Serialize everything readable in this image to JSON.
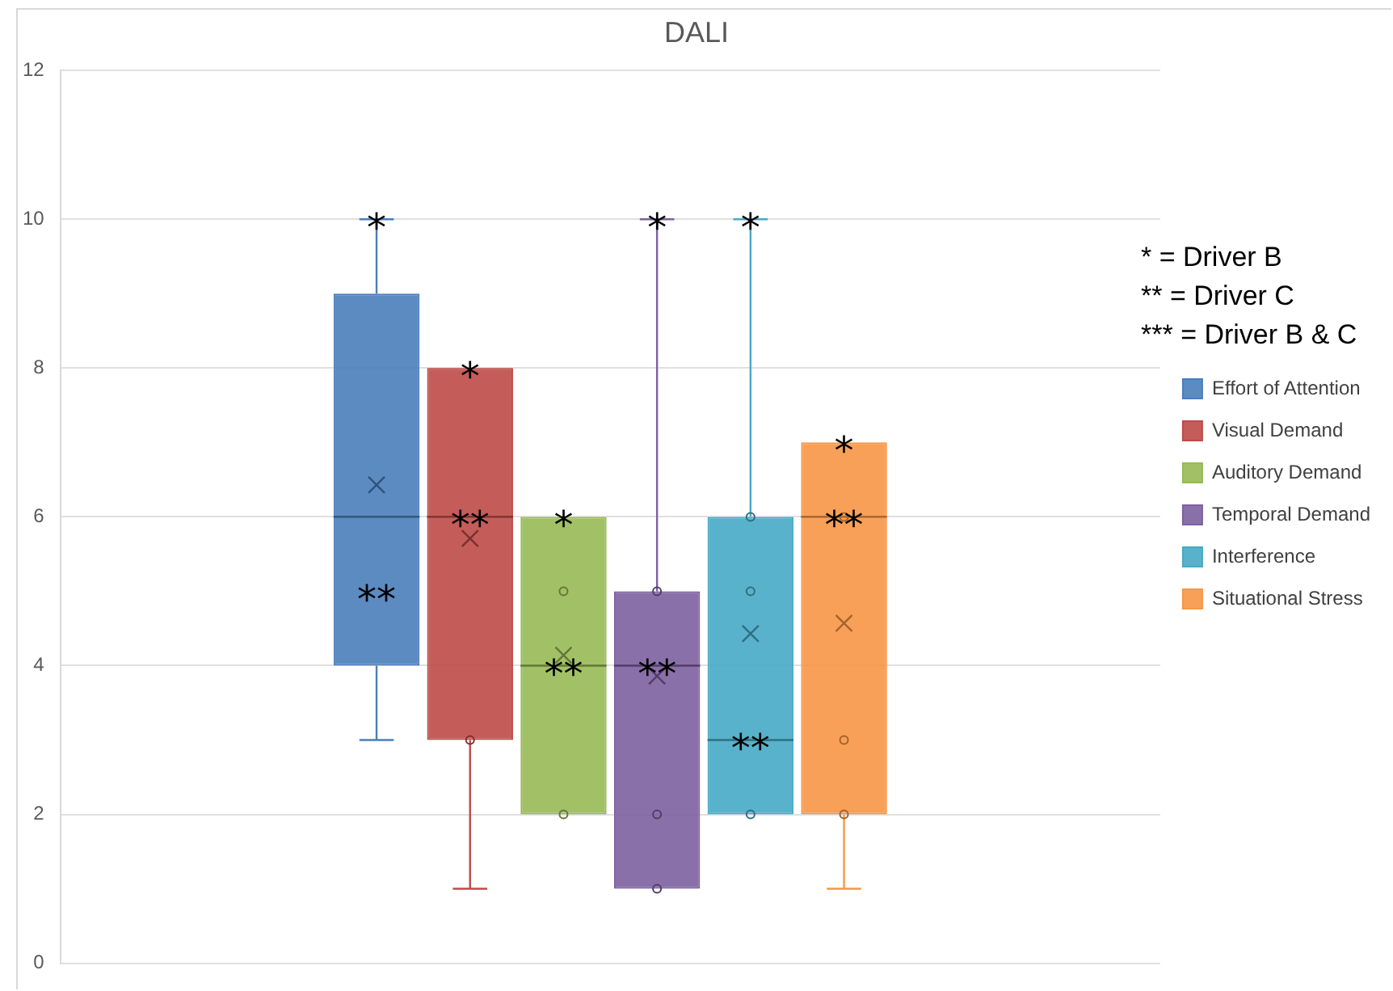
{
  "chart_data": {
    "type": "box",
    "title": "DALI",
    "categories": [
      null
    ],
    "series": [
      {
        "name": "Effort of Attention",
        "color": "#4a7ebb",
        "boxes": [
          {
            "low": 3,
            "q1": 4,
            "median": 6,
            "q3": 9,
            "high": 10,
            "mean": 6.43
          }
        ]
      },
      {
        "name": "Visual Demand",
        "color": "#be4b48",
        "boxes": [
          {
            "low": 1,
            "q1": 3,
            "median": 6,
            "q3": 8,
            "high": 8,
            "mean": 5.71,
            "outliers": [
              3
            ]
          }
        ]
      },
      {
        "name": "Auditory Demand",
        "color": "#98b954",
        "boxes": [
          {
            "low": 2,
            "q1": 2,
            "median": 4,
            "q3": 6,
            "high": 6,
            "mean": 4.14,
            "outliers": [
              5,
              2
            ]
          }
        ]
      },
      {
        "name": "Temporal Demand",
        "color": "#7d60a0",
        "boxes": [
          {
            "low": 1,
            "q1": 1,
            "median": 4,
            "q3": 5,
            "high": 10,
            "mean": 3.86,
            "outliers": [
              5,
              2,
              1
            ]
          }
        ]
      },
      {
        "name": "Interference",
        "color": "#46aac5",
        "boxes": [
          {
            "low": 2,
            "q1": 2,
            "median": 3,
            "q3": 6,
            "high": 10,
            "mean": 4.43,
            "outliers": [
              6,
              5,
              2
            ]
          }
        ]
      },
      {
        "name": "Situational Stress",
        "color": "#f79646",
        "boxes": [
          {
            "low": 1,
            "q1": 2,
            "median": 6,
            "q3": 7,
            "high": 7,
            "mean": 4.57,
            "outliers": [
              6,
              3,
              2
            ]
          }
        ]
      }
    ],
    "ylim": [
      0,
      12
    ],
    "yticks": [
      0,
      2,
      4,
      6,
      8,
      10,
      12
    ],
    "grid": "y",
    "legend": "right",
    "tick_labels": "y",
    "annotations": [
      "* = Driver B",
      "** = Driver C",
      "*** = Driver B & C",
      {
        "text": "*",
        "y": 10
      },
      {
        "text": "**"
      },
      {
        "text": "*",
        "y": 8
      },
      {
        "text": "**",
        "y": 6
      },
      {
        "text": "*",
        "y": 6
      },
      {
        "text": "**",
        "y": 4
      },
      {
        "text": "*",
        "y": 10
      },
      {
        "text": "**",
        "y": 4
      },
      {
        "text": "*",
        "y": 10
      },
      {
        "text": "**",
        "y": 3
      },
      {
        "text": "*",
        "y": 7
      },
      {
        "text": "**",
        "y": 6
      }
    ]
  }
}
